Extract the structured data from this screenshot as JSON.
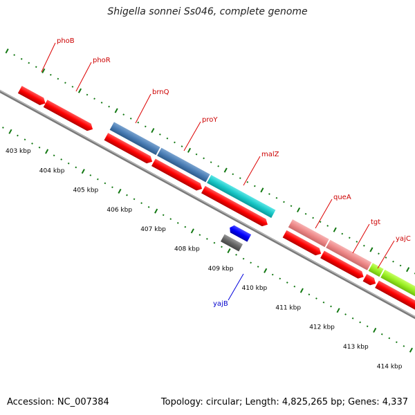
{
  "title": "Shigella sonnei Ss046, complete genome",
  "footer": {
    "accession": "Accession: NC_007384",
    "summary": "Topology: circular; Length: 4,825,265 bp; Genes: 4,337"
  },
  "colors": {
    "backbone": "#888888",
    "tick": "#117711",
    "cds": "#ff0000",
    "label_forward": "#cc0000",
    "label_reverse": "#0000cc"
  },
  "ruler": {
    "unit": "kbp",
    "ticks": [
      "403 kbp",
      "404 kbp",
      "405 kbp",
      "406 kbp",
      "407 kbp",
      "408 kbp",
      "409 kbp",
      "410 kbp",
      "411 kbp",
      "412 kbp",
      "413 kbp",
      "414 kbp"
    ]
  },
  "genes": [
    {
      "name": "phoB",
      "strand": "+",
      "label_color": "#cc0000"
    },
    {
      "name": "phoR",
      "strand": "+",
      "label_color": "#cc0000"
    },
    {
      "name": "brnQ",
      "strand": "+",
      "label_color": "#cc0000"
    },
    {
      "name": "proY",
      "strand": "+",
      "label_color": "#cc0000"
    },
    {
      "name": "malZ",
      "strand": "+",
      "label_color": "#cc0000"
    },
    {
      "name": "queA",
      "strand": "+",
      "label_color": "#cc0000"
    },
    {
      "name": "tgt",
      "strand": "+",
      "label_color": "#cc0000"
    },
    {
      "name": "yajC",
      "strand": "+",
      "label_color": "#cc0000"
    },
    {
      "name": "yajB",
      "strand": "-",
      "label_color": "#0000cc"
    }
  ]
}
